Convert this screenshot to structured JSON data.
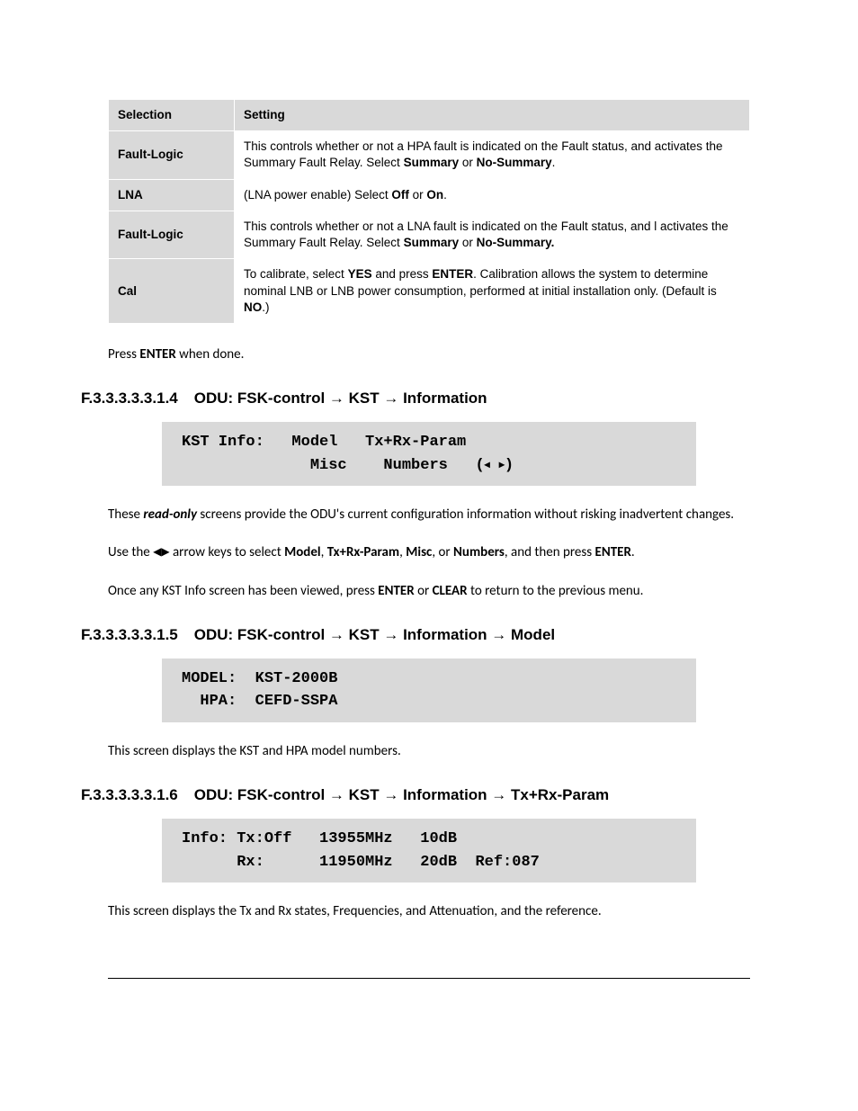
{
  "table": {
    "headers": {
      "c0": "Selection",
      "c1": "Setting"
    },
    "rows": [
      {
        "sel": "Fault-Logic",
        "set_parts": [
          "This controls whether or not a HPA fault is indicated on the Fault status, and  activates the Summary Fault Relay. Select ",
          "Summary",
          " or ",
          "No-Summary",
          "."
        ]
      },
      {
        "sel": "LNA",
        "set_parts": [
          "(LNA power enable) Select ",
          "Off",
          " or ",
          "On",
          "."
        ]
      },
      {
        "sel": "Fault-Logic",
        "set_parts": [
          "This controls whether or not a LNA fault  is indicated on the Fault status, and l activates the Summary Fault Relay. Select ",
          "Summary",
          " or ",
          "No-Summary."
        ]
      },
      {
        "sel": "Cal",
        "set_parts": [
          "To calibrate, select ",
          "YES",
          " and press ",
          "ENTER",
          ". Calibration allows the system to determine nominal LNB or LNB power consumption, performed at initial installation only. (Default is ",
          "NO",
          ".)"
        ]
      }
    ]
  },
  "p_press_enter": {
    "t0": "Press ",
    "b0": "ENTER",
    "t1": " when done."
  },
  "h14": {
    "num": "F.3.3.3.3.3.1.4",
    "label": "ODU: FSK-control → KST → Information"
  },
  "lcd14": {
    "l1_a": "KST Info:   Model   Tx+Rx-Param",
    "l2_a": "              Misc    Numbers   (",
    "tri_l": "◂",
    "tri_r": "▸",
    "l2_b": ")"
  },
  "p_readonly": {
    "t0": "These ",
    "bi0": "read-only",
    "t1": " screens provide the ODU's current configuration information without risking inadvertent changes."
  },
  "p_usearrows": {
    "t0": "Use the ",
    "ak_l": "◀",
    "ak_r": "▶",
    "t1": " arrow keys to select ",
    "b0": "Model",
    "t2": ", ",
    "b1": "Tx+Rx-Param",
    "t3": ", ",
    "b2": "Misc",
    "t4": ", or ",
    "b3": "Numbers",
    "t5": ", and then press ",
    "b4": "ENTER",
    "t6": "."
  },
  "p_onceviewed": {
    "t0": "Once any KST Info screen has been viewed, press ",
    "b0": "ENTER",
    "t1": " or ",
    "b1": "CLEAR",
    "t2": " to return to the previous menu."
  },
  "h15": {
    "num": "F.3.3.3.3.3.1.5",
    "label": "ODU: FSK-control → KST → Information → Model"
  },
  "lcd15": {
    "l1": "MODEL:  KST-2000B",
    "l2": "  HPA:  CEFD-SSPA"
  },
  "p_modeldesc": "This screen displays the KST and HPA model numbers.",
  "h16": {
    "num": "F.3.3.3.3.3.1.6",
    "label": "ODU: FSK-control → KST → Information → Tx+Rx-Param"
  },
  "lcd16": {
    "l1": "Info: Tx:Off   13955MHz   10dB",
    "l2": "      Rx:      11950MHz   20dB  Ref:087"
  },
  "p_txrxdesc": "This screen displays the Tx and Rx states, Frequencies, and Attenuation, and the reference."
}
